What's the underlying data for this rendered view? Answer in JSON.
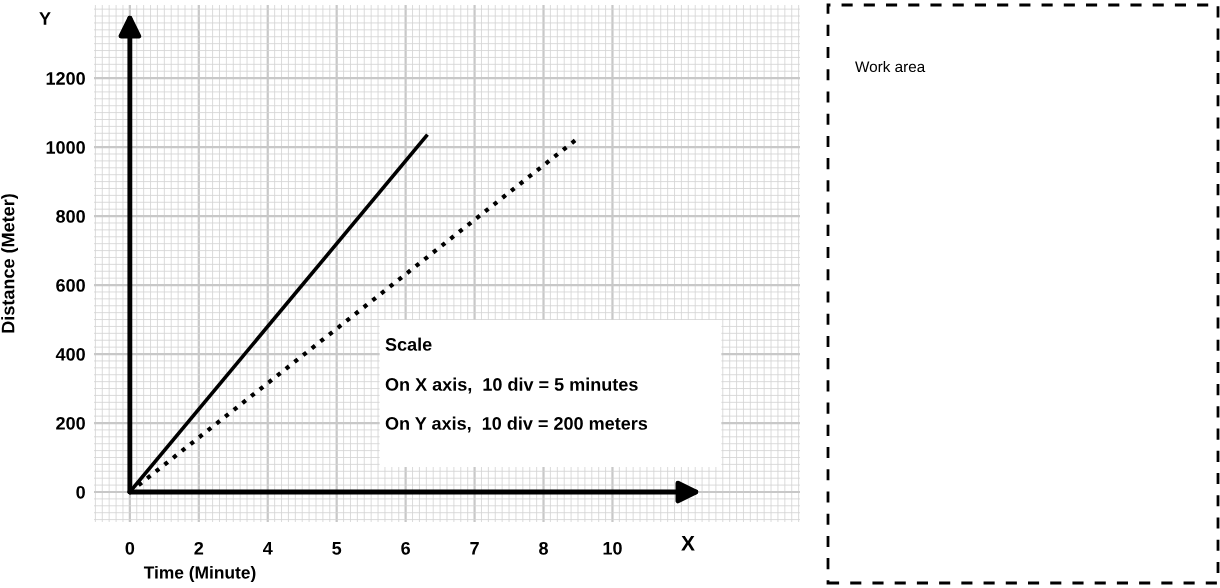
{
  "chart_data": {
    "type": "line",
    "xlabel": "Time (Minute)",
    "ylabel": "Distance (Meter)",
    "series": [
      {
        "color": "#000000",
        "line_style": "solid",
        "values": [
          0,
          null,
          null,
          null,
          null,
          null,
          null,
          null,
          null,
          null,
          null,
          null,
          null,
          null,
          null,
          null,
          null,
          null,
          null,
          null,
          null,
          null,
          null,
          null,
          null,
          null,
          null,
          null,
          null,
          null,
          null,
          null,
          null,
          null,
          null,
          null,
          null,
          null,
          null,
          null,
          null,
          null,
          null,
          1032,
          null,
          null,
          null,
          null,
          null,
          null,
          null,
          null,
          null,
          null,
          null,
          null,
          null,
          null,
          null,
          null,
          null,
          null,
          null,
          null,
          null,
          null,
          null,
          null,
          null,
          null,
          null
        ]
      },
      {
        "color": "#000000",
        "line_style": "dotted",
        "values": [
          0,
          null,
          null,
          null,
          null,
          null,
          null,
          null,
          null,
          null,
          null,
          null,
          null,
          null,
          null,
          null,
          null,
          null,
          null,
          null,
          null,
          null,
          null,
          null,
          null,
          null,
          null,
          null,
          null,
          null,
          null,
          null,
          null,
          null,
          null,
          null,
          null,
          null,
          null,
          null,
          null,
          null,
          null,
          null,
          null,
          null,
          null,
          null,
          null,
          null,
          null,
          null,
          null,
          null,
          null,
          null,
          null,
          null,
          null,
          null,
          null,
          null,
          null,
          null,
          null,
          1026,
          null,
          null,
          null,
          null,
          null
        ]
      }
    ],
    "categories": [
      "0",
      null,
      null,
      null,
      null,
      null,
      null,
      null,
      null,
      null,
      "2",
      null,
      null,
      null,
      null,
      null,
      null,
      null,
      null,
      null,
      "4",
      null,
      null,
      null,
      null,
      null,
      null,
      null,
      null,
      null,
      "5",
      null,
      null,
      null,
      null,
      null,
      null,
      null,
      null,
      null,
      "6",
      null,
      null,
      null,
      null,
      null,
      null,
      null,
      null,
      null,
      "7",
      null,
      null,
      null,
      null,
      null,
      null,
      null,
      null,
      null,
      "8",
      null,
      null,
      null,
      null,
      null,
      null,
      null,
      null,
      null,
      "10"
    ],
    "ylim": [
      -87,
      1412
    ],
    "yticks": [
      0,
      200,
      400,
      600,
      800,
      1000,
      1200
    ],
    "grid": true,
    "marker": "none",
    "annotations": [
      "Y",
      "X",
      "Scale",
      "On X axis,  10 div = 5 minutes",
      "On Y axis,  10 div = 200 meters",
      "Work area"
    ]
  }
}
